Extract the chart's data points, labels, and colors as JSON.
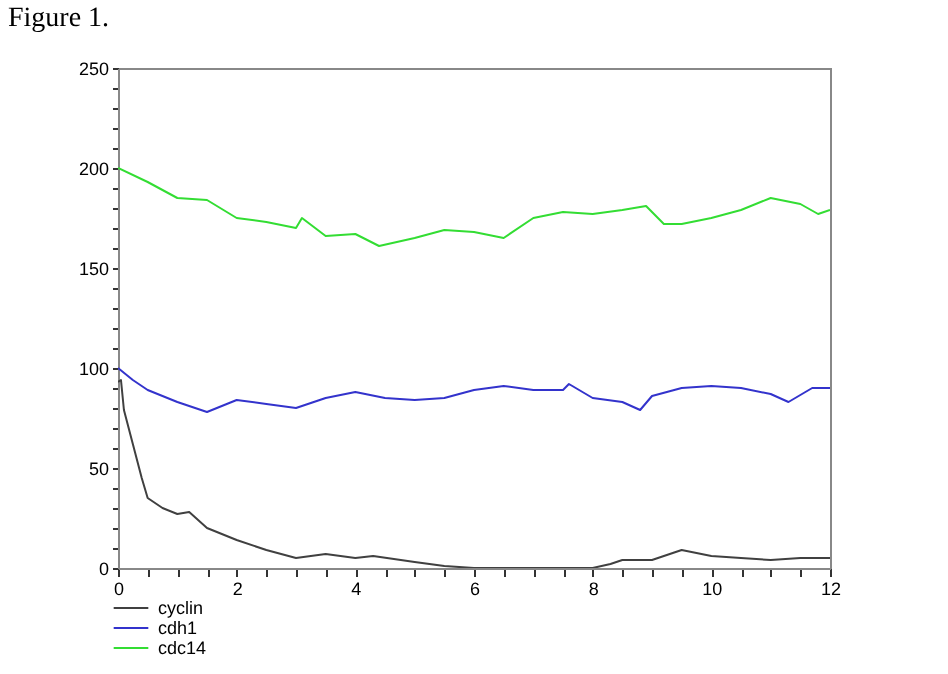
{
  "chart_data": {
    "type": "line",
    "annotations": [
      "Figure 1."
    ],
    "xlim": [
      0,
      12
    ],
    "ylim": [
      0,
      250
    ],
    "xticks": [
      0,
      {
        "value": 0.5,
        "label": null
      },
      {
        "value": 1,
        "label": null
      },
      {
        "value": 1.5,
        "label": null
      },
      2,
      {
        "value": 2.5,
        "label": null
      },
      {
        "value": 3,
        "label": null
      },
      {
        "value": 3.5,
        "label": null
      },
      4,
      {
        "value": 4.5,
        "label": null
      },
      {
        "value": 5,
        "label": null
      },
      {
        "value": 5.5,
        "label": null
      },
      6,
      {
        "value": 6.5,
        "label": null
      },
      {
        "value": 7,
        "label": null
      },
      {
        "value": 7.5,
        "label": null
      },
      8,
      {
        "value": 8.5,
        "label": null
      },
      {
        "value": 9,
        "label": null
      },
      {
        "value": 9.5,
        "label": null
      },
      10,
      {
        "value": 10.5,
        "label": null
      },
      {
        "value": 11,
        "label": null
      },
      {
        "value": 11.5,
        "label": null
      },
      12
    ],
    "yticks": [
      0,
      {
        "value": 10,
        "label": null
      },
      {
        "value": 20,
        "label": null
      },
      {
        "value": 30,
        "label": null
      },
      {
        "value": 40,
        "label": null
      },
      50,
      {
        "value": 60,
        "label": null
      },
      {
        "value": 70,
        "label": null
      },
      {
        "value": 80,
        "label": null
      },
      {
        "value": 90,
        "label": null
      },
      100,
      {
        "value": 110,
        "label": null
      },
      {
        "value": 120,
        "label": null
      },
      {
        "value": 130,
        "label": null
      },
      {
        "value": 140,
        "label": null
      },
      150,
      {
        "value": 160,
        "label": null
      },
      {
        "value": 170,
        "label": null
      },
      {
        "value": 180,
        "label": null
      },
      {
        "value": 190,
        "label": null
      },
      200,
      {
        "value": 210,
        "label": null
      },
      {
        "value": 220,
        "label": null
      },
      {
        "value": 230,
        "label": null
      },
      {
        "value": 240,
        "label": null
      },
      250
    ],
    "grid": false,
    "legend": "bottom left",
    "marker": "none",
    "line_style": "solid",
    "series": [
      {
        "name": "cyclin",
        "color": "#404040",
        "x": [
          0,
          0.05,
          0.1,
          0.25,
          0.4,
          0.5,
          0.75,
          1,
          1.2,
          1.5,
          2,
          2.5,
          3,
          3.5,
          4,
          4.3,
          5,
          5.5,
          6,
          7,
          8,
          8.3,
          8.5,
          9,
          9.5,
          10,
          10.5,
          11,
          11.5,
          12
        ],
        "values": [
          93,
          94,
          79,
          62,
          45,
          35,
          30,
          27,
          28,
          20,
          14,
          9,
          5,
          7,
          5,
          6,
          3,
          1,
          0,
          0,
          0,
          2,
          4,
          4,
          9,
          6,
          5,
          4,
          5,
          5
        ]
      },
      {
        "name": "cdh1",
        "color": "#3333cc",
        "x": [
          0,
          0.25,
          0.5,
          1,
          1.5,
          2,
          2.5,
          3,
          3.5,
          4,
          4.5,
          5,
          5.5,
          6,
          6.5,
          7,
          7.5,
          7.6,
          8,
          8.5,
          8.8,
          9,
          9.5,
          10,
          10.5,
          11,
          11.3,
          11.7,
          12
        ],
        "values": [
          100,
          94,
          89,
          83,
          78,
          84,
          82,
          80,
          85,
          88,
          85,
          84,
          85,
          89,
          91,
          89,
          89,
          92,
          85,
          83,
          79,
          86,
          90,
          91,
          90,
          87,
          83,
          90,
          90
        ]
      },
      {
        "name": "cdc14",
        "color": "#33dd33",
        "x": [
          0,
          0.5,
          1,
          1.5,
          2,
          2.5,
          3,
          3.1,
          3.5,
          4,
          4.4,
          5,
          5.5,
          6,
          6.5,
          7,
          7.5,
          8,
          8.5,
          8.9,
          9.2,
          9.5,
          10,
          10.5,
          11,
          11.5,
          11.8,
          12
        ],
        "values": [
          200,
          193,
          185,
          184,
          175,
          173,
          170,
          175,
          166,
          167,
          161,
          165,
          169,
          168,
          165,
          175,
          178,
          177,
          179,
          181,
          172,
          172,
          175,
          179,
          185,
          182,
          177,
          179
        ]
      }
    ]
  }
}
